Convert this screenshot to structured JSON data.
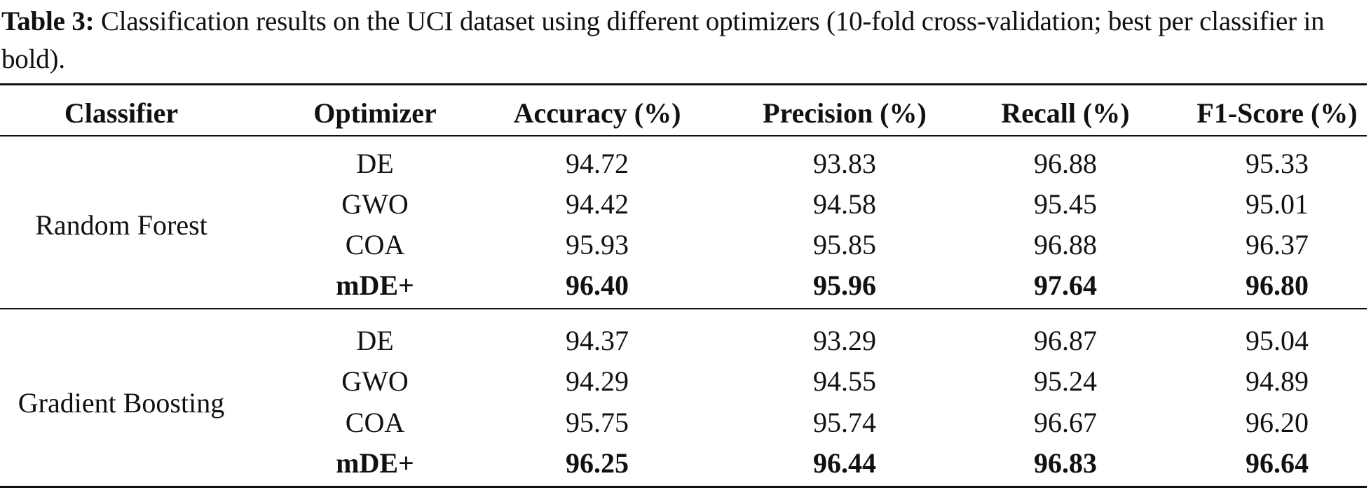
{
  "caption": {
    "label": "Table 3:",
    "text": "Classification results on the UCI dataset using different optimizers (10-fold cross-validation; best per classifier in bold)."
  },
  "table": {
    "headers": [
      "Classifier",
      "Optimizer",
      "Accuracy (%)",
      "Precision (%)",
      "Recall (%)",
      "F1-Score (%)"
    ],
    "groups": [
      {
        "classifier": "Random Forest",
        "rows": [
          {
            "optimizer": "DE",
            "accuracy": "94.72",
            "precision": "93.83",
            "recall": "96.88",
            "f1": "95.33",
            "bold": false
          },
          {
            "optimizer": "GWO",
            "accuracy": "94.42",
            "precision": "94.58",
            "recall": "95.45",
            "f1": "95.01",
            "bold": false
          },
          {
            "optimizer": "COA",
            "accuracy": "95.93",
            "precision": "95.85",
            "recall": "96.88",
            "f1": "96.37",
            "bold": false
          },
          {
            "optimizer": "mDE+",
            "accuracy": "96.40",
            "precision": "95.96",
            "recall": "97.64",
            "f1": "96.80",
            "bold": true
          }
        ]
      },
      {
        "classifier": "Gradient Boosting",
        "rows": [
          {
            "optimizer": "DE",
            "accuracy": "94.37",
            "precision": "93.29",
            "recall": "96.87",
            "f1": "95.04",
            "bold": false
          },
          {
            "optimizer": "GWO",
            "accuracy": "94.29",
            "precision": "94.55",
            "recall": "95.24",
            "f1": "94.89",
            "bold": false
          },
          {
            "optimizer": "COA",
            "accuracy": "95.75",
            "precision": "95.74",
            "recall": "96.67",
            "f1": "96.20",
            "bold": false
          },
          {
            "optimizer": "mDE+",
            "accuracy": "96.25",
            "precision": "96.44",
            "recall": "96.83",
            "f1": "96.64",
            "bold": true
          }
        ]
      }
    ]
  }
}
